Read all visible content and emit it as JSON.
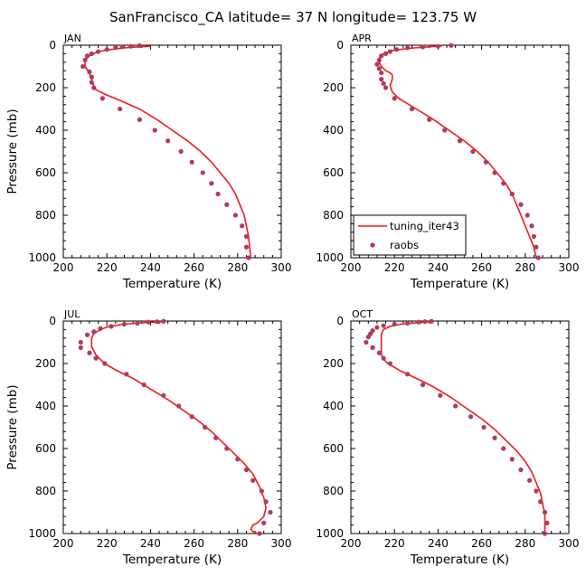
{
  "figure": {
    "title": "SanFrancisco_CA  latitude= 37 N longitude= 123.75 W"
  },
  "colors": {
    "model_line": "#ee1c1c",
    "obs_marker": "#b23a5a"
  },
  "legend": {
    "items": [
      "tuning_iter43",
      "raobs"
    ],
    "placement": "lower-left of APR panel"
  },
  "chart_data": [
    {
      "type": "line",
      "panel": "JAN",
      "xlabel": "Temperature (K)",
      "ylabel": "Pressure (mb)",
      "xlim": [
        200,
        300
      ],
      "ylim": [
        1000,
        0
      ],
      "xticks": [
        200,
        220,
        240,
        260,
        280,
        300
      ],
      "yticks": [
        0,
        200,
        400,
        600,
        800,
        1000
      ],
      "series": [
        {
          "name": "tuning_iter43",
          "kind": "line",
          "points": [
            [
              240,
              5
            ],
            [
              230,
              10
            ],
            [
              222,
              20
            ],
            [
              216,
              30
            ],
            [
              212,
              50
            ],
            [
              210,
              70
            ],
            [
              210,
              100
            ],
            [
              212,
              130
            ],
            [
              213,
              160
            ],
            [
              214,
              190
            ],
            [
              215,
              210
            ],
            [
              219,
              230
            ],
            [
              226,
              260
            ],
            [
              235,
              300
            ],
            [
              243,
              350
            ],
            [
              250,
              400
            ],
            [
              257,
              450
            ],
            [
              263,
              500
            ],
            [
              268,
              550
            ],
            [
              272,
              600
            ],
            [
              276,
              650
            ],
            [
              279,
              700
            ],
            [
              281,
              750
            ],
            [
              283,
              800
            ],
            [
              284,
              850
            ],
            [
              285,
              900
            ],
            [
              285.5,
              950
            ],
            [
              286,
              1000
            ]
          ]
        },
        {
          "name": "raobs",
          "kind": "scatter",
          "points": [
            [
              235,
              2
            ],
            [
              231,
              5
            ],
            [
              227,
              7
            ],
            [
              224,
              10
            ],
            [
              220,
              20
            ],
            [
              216,
              30
            ],
            [
              213,
              40
            ],
            [
              211,
              50
            ],
            [
              210,
              70
            ],
            [
              209,
              100
            ],
            [
              212,
              125
            ],
            [
              213,
              150
            ],
            [
              213,
              175
            ],
            [
              214,
              200
            ],
            [
              218,
              250
            ],
            [
              226,
              300
            ],
            [
              235,
              350
            ],
            [
              242,
              400
            ],
            [
              248,
              450
            ],
            [
              254,
              500
            ],
            [
              259,
              550
            ],
            [
              264,
              600
            ],
            [
              268,
              650
            ],
            [
              271,
              700
            ],
            [
              275,
              750
            ],
            [
              279,
              800
            ],
            [
              282,
              850
            ],
            [
              284,
              900
            ],
            [
              284,
              950
            ],
            [
              285,
              1000
            ]
          ]
        }
      ]
    },
    {
      "type": "line",
      "panel": "APR",
      "xlabel": "Temperature (K)",
      "ylabel": "",
      "xlim": [
        200,
        300
      ],
      "ylim": [
        1000,
        0
      ],
      "xticks": [
        200,
        220,
        240,
        260,
        280,
        300
      ],
      "yticks": [
        0,
        200,
        400,
        600,
        800,
        1000
      ],
      "series": [
        {
          "name": "tuning_iter43",
          "kind": "line",
          "points": [
            [
              242,
              3
            ],
            [
              235,
              8
            ],
            [
              226,
              15
            ],
            [
              219,
              25
            ],
            [
              215,
              40
            ],
            [
              213,
              60
            ],
            [
              213,
              80
            ],
            [
              214,
              100
            ],
            [
              216,
              120
            ],
            [
              218,
              130
            ],
            [
              219,
              140
            ],
            [
              219,
              160
            ],
            [
              218,
              190
            ],
            [
              219,
              220
            ],
            [
              222,
              250
            ],
            [
              230,
              300
            ],
            [
              238,
              350
            ],
            [
              245,
              400
            ],
            [
              252,
              450
            ],
            [
              258,
              500
            ],
            [
              263,
              550
            ],
            [
              267,
              600
            ],
            [
              271,
              650
            ],
            [
              274,
              700
            ],
            [
              276,
              750
            ],
            [
              278,
              800
            ],
            [
              280,
              850
            ],
            [
              282,
              900
            ],
            [
              284,
              950
            ],
            [
              285,
              1000
            ]
          ]
        },
        {
          "name": "raobs",
          "kind": "scatter",
          "points": [
            [
              246,
              1
            ],
            [
              240,
              5
            ],
            [
              233,
              8
            ],
            [
              226,
              12
            ],
            [
              221,
              20
            ],
            [
              218,
              30
            ],
            [
              216,
              40
            ],
            [
              214,
              50
            ],
            [
              213,
              70
            ],
            [
              212,
              90
            ],
            [
              213,
              110
            ],
            [
              214,
              130
            ],
            [
              214,
              160
            ],
            [
              215,
              180
            ],
            [
              216,
              200
            ],
            [
              220,
              250
            ],
            [
              228,
              300
            ],
            [
              236,
              350
            ],
            [
              243,
              400
            ],
            [
              250,
              450
            ],
            [
              256,
              500
            ],
            [
              262,
              550
            ],
            [
              266,
              600
            ],
            [
              270,
              650
            ],
            [
              274,
              700
            ],
            [
              278,
              750
            ],
            [
              281,
              800
            ],
            [
              283,
              850
            ],
            [
              284,
              900
            ],
            [
              285,
              950
            ],
            [
              286,
              1000
            ]
          ]
        }
      ]
    },
    {
      "type": "line",
      "panel": "JUL",
      "xlabel": "Temperature (K)",
      "ylabel": "Pressure (mb)",
      "xlim": [
        200,
        300
      ],
      "ylim": [
        1000,
        0
      ],
      "xticks": [
        200,
        220,
        240,
        260,
        280,
        300
      ],
      "yticks": [
        0,
        200,
        400,
        600,
        800,
        1000
      ],
      "series": [
        {
          "name": "tuning_iter43",
          "kind": "line",
          "points": [
            [
              246,
              3
            ],
            [
              238,
              7
            ],
            [
              228,
              15
            ],
            [
              221,
              25
            ],
            [
              217,
              40
            ],
            [
              214,
              60
            ],
            [
              213,
              80
            ],
            [
              213,
              100
            ],
            [
              213,
              120
            ],
            [
              214,
              140
            ],
            [
              215,
              160
            ],
            [
              217,
              180
            ],
            [
              219,
              200
            ],
            [
              224,
              230
            ],
            [
              232,
              270
            ],
            [
              240,
              320
            ],
            [
              248,
              370
            ],
            [
              255,
              420
            ],
            [
              262,
              470
            ],
            [
              268,
              520
            ],
            [
              273,
              570
            ],
            [
              278,
              620
            ],
            [
              283,
              670
            ],
            [
              287,
              720
            ],
            [
              290,
              780
            ],
            [
              292,
              830
            ],
            [
              293,
              880
            ],
            [
              292,
              920
            ],
            [
              289,
              950
            ],
            [
              287,
              960
            ],
            [
              286,
              980
            ],
            [
              287,
              990
            ],
            [
              289,
              1000
            ]
          ]
        },
        {
          "name": "raobs",
          "kind": "scatter",
          "points": [
            [
              246,
              1
            ],
            [
              243,
              3
            ],
            [
              239,
              5
            ],
            [
              234,
              10
            ],
            [
              228,
              15
            ],
            [
              222,
              25
            ],
            [
              217,
              35
            ],
            [
              214,
              50
            ],
            [
              211,
              65
            ],
            [
              208,
              100
            ],
            [
              208,
              125
            ],
            [
              212,
              150
            ],
            [
              215,
              175
            ],
            [
              219,
              200
            ],
            [
              229,
              250
            ],
            [
              237,
              300
            ],
            [
              246,
              350
            ],
            [
              253,
              400
            ],
            [
              259,
              450
            ],
            [
              265,
              500
            ],
            [
              270,
              550
            ],
            [
              275,
              600
            ],
            [
              280,
              650
            ],
            [
              284,
              700
            ],
            [
              287,
              750
            ],
            [
              291,
              800
            ],
            [
              293,
              850
            ],
            [
              295,
              900
            ],
            [
              292,
              950
            ],
            [
              290,
              1000
            ]
          ]
        }
      ]
    },
    {
      "type": "line",
      "panel": "OCT",
      "xlabel": "Temperature (K)",
      "ylabel": "",
      "xlim": [
        200,
        300
      ],
      "ylim": [
        1000,
        0
      ],
      "xticks": [
        200,
        220,
        240,
        260,
        280,
        300
      ],
      "yticks": [
        0,
        200,
        400,
        600,
        800,
        1000
      ],
      "series": [
        {
          "name": "tuning_iter43",
          "kind": "line",
          "points": [
            [
              236,
              3
            ],
            [
              230,
              8
            ],
            [
              223,
              15
            ],
            [
              218,
              25
            ],
            [
              215,
              40
            ],
            [
              214,
              60
            ],
            [
              214,
              80
            ],
            [
              214,
              100
            ],
            [
              214,
              120
            ],
            [
              214,
              140
            ],
            [
              214,
              160
            ],
            [
              215,
              180
            ],
            [
              217,
              200
            ],
            [
              222,
              230
            ],
            [
              230,
              270
            ],
            [
              238,
              310
            ],
            [
              246,
              360
            ],
            [
              253,
              410
            ],
            [
              260,
              460
            ],
            [
              266,
              510
            ],
            [
              271,
              560
            ],
            [
              276,
              610
            ],
            [
              280,
              660
            ],
            [
              283,
              710
            ],
            [
              285,
              760
            ],
            [
              287,
              810
            ],
            [
              288,
              860
            ],
            [
              289,
              910
            ],
            [
              289,
              960
            ],
            [
              289,
              1000
            ]
          ]
        },
        {
          "name": "raobs",
          "kind": "scatter",
          "points": [
            [
              237,
              1
            ],
            [
              234,
              3
            ],
            [
              231,
              5
            ],
            [
              226,
              10
            ],
            [
              220,
              15
            ],
            [
              215,
              22
            ],
            [
              212,
              30
            ],
            [
              210,
              45
            ],
            [
              209,
              60
            ],
            [
              208,
              75
            ],
            [
              207,
              100
            ],
            [
              210,
              125
            ],
            [
              213,
              150
            ],
            [
              215,
              175
            ],
            [
              218,
              200
            ],
            [
              226,
              250
            ],
            [
              233,
              300
            ],
            [
              241,
              350
            ],
            [
              248,
              400
            ],
            [
              255,
              450
            ],
            [
              261,
              500
            ],
            [
              266,
              550
            ],
            [
              270,
              600
            ],
            [
              274,
              650
            ],
            [
              278,
              700
            ],
            [
              282,
              750
            ],
            [
              285,
              800
            ],
            [
              287,
              850
            ],
            [
              289,
              900
            ],
            [
              290,
              950
            ],
            [
              289,
              1000
            ]
          ]
        }
      ]
    }
  ]
}
